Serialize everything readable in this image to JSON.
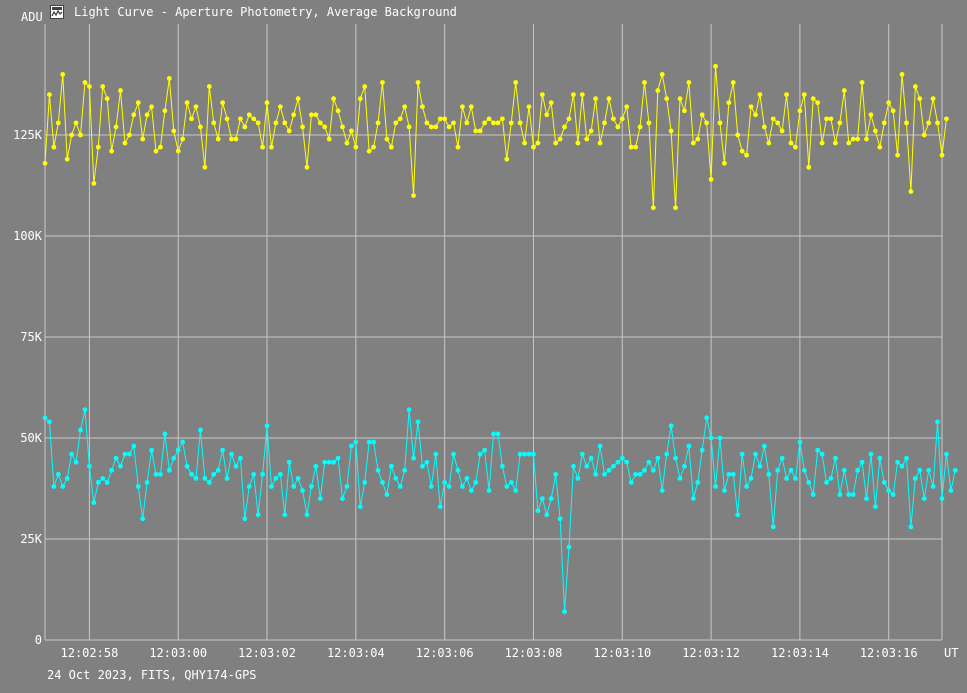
{
  "window": {
    "title": "Light Curve - Aperture Photometry, Average Background",
    "icon": "light-curve-app-icon"
  },
  "footer": "24 Oct 2023, FITS, QHY174-GPS",
  "colors": {
    "background": "#808080",
    "grid": "#c8c8c8",
    "text": "#ffffff",
    "series_target": "#ffff00",
    "series_background": "#00ffff"
  },
  "chart_data": {
    "type": "line",
    "ylabel": "ADU",
    "xlabel": "UT",
    "ylim": [
      0,
      150000
    ],
    "yticks": [
      {
        "value": 0,
        "label": "0"
      },
      {
        "value": 25000,
        "label": "25K"
      },
      {
        "value": 50000,
        "label": "50K"
      },
      {
        "value": 75000,
        "label": "75K"
      },
      {
        "value": 100000,
        "label": "100K"
      },
      {
        "value": 125000,
        "label": "125K"
      }
    ],
    "xlim": [
      0,
      202
    ],
    "xticks": [
      {
        "value": 10,
        "label": "12:02:58"
      },
      {
        "value": 30,
        "label": "12:03:00"
      },
      {
        "value": 50,
        "label": "12:03:02"
      },
      {
        "value": 70,
        "label": "12:03:04"
      },
      {
        "value": 90,
        "label": "12:03:06"
      },
      {
        "value": 110,
        "label": "12:03:08"
      },
      {
        "value": 130,
        "label": "12:03:10"
      },
      {
        "value": 150,
        "label": "12:03:12"
      },
      {
        "value": 170,
        "label": "12:03:14"
      },
      {
        "value": 190,
        "label": "12:03:16"
      }
    ],
    "grid": true,
    "legend": "none",
    "series": [
      {
        "color": "#ffff00",
        "values": [
          118000,
          135000,
          122000,
          128000,
          140000,
          119000,
          125000,
          128000,
          125000,
          138000,
          137000,
          113000,
          122000,
          137000,
          134000,
          121000,
          127000,
          136000,
          123000,
          125000,
          130000,
          133000,
          124000,
          130000,
          132000,
          121000,
          122000,
          131000,
          139000,
          126000,
          121000,
          124000,
          133000,
          129000,
          132000,
          127000,
          117000,
          137000,
          128000,
          124000,
          133000,
          129000,
          124000,
          124000,
          129000,
          127000,
          130000,
          129000,
          128000,
          122000,
          133000,
          122000,
          128000,
          132000,
          128000,
          126000,
          130000,
          134000,
          127000,
          117000,
          130000,
          130000,
          128000,
          127000,
          124000,
          134000,
          131000,
          127000,
          123000,
          126000,
          122000,
          134000,
          137000,
          121000,
          122000,
          128000,
          138000,
          124000,
          122000,
          128000,
          129000,
          132000,
          127000,
          110000,
          138000,
          132000,
          128000,
          127000,
          127000,
          129000,
          129000,
          127000,
          128000,
          122000,
          132000,
          128000,
          132000,
          126000,
          126000,
          128000,
          129000,
          128000,
          128000,
          129000,
          119000,
          128000,
          138000,
          128000,
          123000,
          132000,
          122000,
          123000,
          135000,
          130000,
          133000,
          123000,
          124000,
          127000,
          129000,
          135000,
          123000,
          135000,
          124000,
          126000,
          134000,
          123000,
          128000,
          134000,
          129000,
          127000,
          129000,
          132000,
          122000,
          122000,
          127000,
          138000,
          128000,
          107000,
          136000,
          140000,
          134000,
          126000,
          107000,
          134000,
          131000,
          138000,
          123000,
          124000,
          130000,
          128000,
          114000,
          142000,
          128000,
          118000,
          133000,
          138000,
          125000,
          121000,
          120000,
          132000,
          130000,
          135000,
          127000,
          123000,
          129000,
          128000,
          126000,
          135000,
          123000,
          122000,
          131000,
          135000,
          117000,
          134000,
          133000,
          123000,
          129000,
          129000,
          123000,
          128000,
          136000,
          123000,
          124000,
          124000,
          138000,
          124000,
          130000,
          126000,
          122000,
          128000,
          133000,
          131000,
          120000,
          140000,
          128000,
          111000,
          137000,
          134000,
          125000,
          128000,
          134000,
          128000,
          120000,
          129000
        ]
      },
      {
        "color": "#00ffff",
        "values": [
          55000,
          54000,
          38000,
          41000,
          38000,
          40000,
          46000,
          44000,
          52000,
          57000,
          43000,
          34000,
          39000,
          40000,
          39000,
          42000,
          45000,
          43000,
          46000,
          46000,
          48000,
          38000,
          30000,
          39000,
          47000,
          41000,
          41000,
          51000,
          42000,
          45000,
          47000,
          49000,
          43000,
          41000,
          40000,
          52000,
          40000,
          39000,
          41000,
          42000,
          47000,
          40000,
          46000,
          43000,
          45000,
          30000,
          38000,
          41000,
          31000,
          41000,
          53000,
          38000,
          40000,
          41000,
          31000,
          44000,
          38000,
          40000,
          37000,
          31000,
          38000,
          43000,
          35000,
          44000,
          44000,
          44000,
          45000,
          35000,
          38000,
          48000,
          49000,
          33000,
          39000,
          49000,
          49000,
          42000,
          39000,
          36000,
          43000,
          40000,
          38000,
          42000,
          57000,
          45000,
          54000,
          43000,
          44000,
          38000,
          46000,
          33000,
          39000,
          38000,
          46000,
          42000,
          38000,
          40000,
          37000,
          39000,
          46000,
          47000,
          37000,
          51000,
          51000,
          43000,
          38000,
          39000,
          37000,
          46000,
          46000,
          46000,
          46000,
          32000,
          35000,
          31000,
          35000,
          41000,
          30000,
          7000,
          23000,
          43000,
          40000,
          46000,
          43000,
          45000,
          41000,
          48000,
          41000,
          42000,
          43000,
          44000,
          45000,
          44000,
          39000,
          41000,
          41000,
          42000,
          44000,
          42000,
          45000,
          37000,
          46000,
          53000,
          45000,
          40000,
          43000,
          48000,
          35000,
          39000,
          47000,
          55000,
          50000,
          38000,
          50000,
          37000,
          41000,
          41000,
          31000,
          46000,
          38000,
          40000,
          46000,
          43000,
          48000,
          41000,
          28000,
          42000,
          45000,
          40000,
          42000,
          40000,
          49000,
          42000,
          39000,
          36000,
          47000,
          46000,
          39000,
          40000,
          45000,
          36000,
          42000,
          36000,
          36000,
          42000,
          44000,
          35000,
          46000,
          33000,
          45000,
          39000,
          37000,
          36000,
          44000,
          43000,
          45000,
          28000,
          40000,
          42000,
          35000,
          42000,
          38000,
          54000,
          35000,
          46000,
          37000,
          42000
        ]
      }
    ]
  }
}
